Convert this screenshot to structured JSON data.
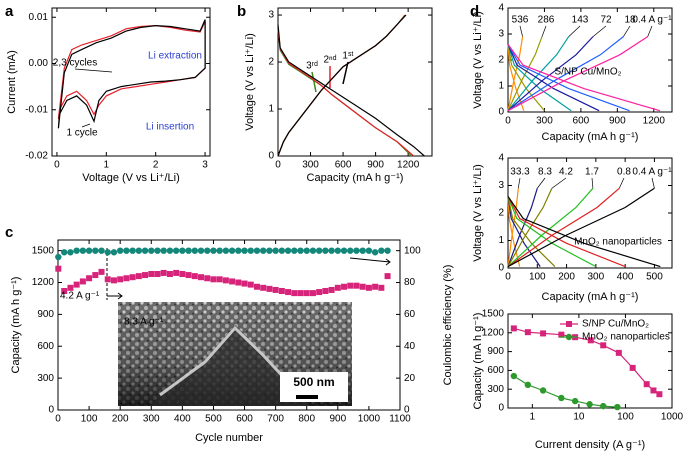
{
  "chart_data": [
    {
      "type": "line",
      "panel": "a",
      "xlabel": "Voltage (V vs Li⁺/Li)",
      "ylabel": "Current (mA)",
      "xlim": [
        -0.1,
        3.1
      ],
      "xticks": [
        0,
        1,
        2,
        3
      ],
      "ylim": [
        -0.02,
        0.012
      ],
      "yticks": [
        -0.02,
        -0.01,
        {
          "value": 0,
          "label": "0.00"
        },
        0.01
      ],
      "annotation_color": "#2a3fd1",
      "annotations": [
        "Li extraction",
        "Li insertion"
      ],
      "series": [
        {
          "name": "2,3 cycles",
          "color": "#e8202a",
          "x": [
            0.03,
            0.15,
            0.3,
            0.5,
            0.8,
            1.1,
            1.4,
            1.7,
            2.0,
            2.3,
            2.6,
            2.9,
            3.0,
            3.0,
            2.8,
            2.5,
            2.2,
            1.9,
            1.6,
            1.3,
            1.0,
            0.85,
            0.75,
            0.6,
            0.4,
            0.2,
            0.05,
            0.03
          ],
          "values": [
            -0.012,
            -0.001,
            0.003,
            0.004,
            0.005,
            0.006,
            0.0075,
            0.008,
            0.0082,
            0.0078,
            0.0072,
            0.0068,
            0.009,
            -0.001,
            -0.003,
            -0.0035,
            -0.004,
            -0.0045,
            -0.005,
            -0.0055,
            -0.007,
            -0.009,
            -0.011,
            -0.008,
            -0.006,
            -0.007,
            -0.01,
            -0.012
          ]
        },
        {
          "name": "1 cycle",
          "color": "#000000",
          "x": [
            0.03,
            0.15,
            0.3,
            0.5,
            0.8,
            1.1,
            1.4,
            1.7,
            2.0,
            2.3,
            2.6,
            2.9,
            3.0,
            3.0,
            2.8,
            2.5,
            2.2,
            1.9,
            1.6,
            1.3,
            1.0,
            0.85,
            0.75,
            0.6,
            0.4,
            0.2,
            0.05,
            0.03
          ],
          "values": [
            -0.014,
            -0.002,
            0.002,
            0.003,
            0.0045,
            0.0055,
            0.007,
            0.0078,
            0.0082,
            0.008,
            0.0075,
            0.007,
            0.0095,
            -0.001,
            -0.003,
            -0.0035,
            -0.0038,
            -0.004,
            -0.0045,
            -0.005,
            -0.006,
            -0.008,
            -0.0125,
            -0.009,
            -0.007,
            -0.008,
            -0.011,
            -0.014
          ]
        }
      ]
    },
    {
      "type": "line",
      "panel": "b",
      "xlabel": "Capacity (mA h g⁻¹)",
      "ylabel": "Voltage (V vs Li⁺/Li)",
      "xlim": [
        0,
        1420
      ],
      "xticks": [
        0,
        300,
        600,
        900,
        1200
      ],
      "ylim": [
        0,
        3.15
      ],
      "yticks": [
        0,
        1,
        2,
        3
      ],
      "series": [
        {
          "name": "3ʳᵈ",
          "color": "#3a8a1a",
          "x": [
            0,
            20,
            100,
            200,
            300,
            400,
            500,
            700,
            900,
            1100,
            1230,
            null,
            0,
            50,
            100,
            200,
            400,
            600,
            800,
            900,
            1000,
            1100,
            1170
          ],
          "values": [
            2.7,
            2.25,
            1.95,
            1.8,
            1.65,
            1.5,
            1.3,
            0.95,
            0.6,
            0.3,
            0.0,
            null,
            0,
            0.3,
            0.5,
            0.8,
            1.4,
            1.9,
            2.2,
            2.35,
            2.55,
            2.8,
            3.0
          ]
        },
        {
          "name": "2ⁿᵈ",
          "color": "#e8202a",
          "x": [
            0,
            20,
            100,
            200,
            300,
            400,
            500,
            700,
            900,
            1100,
            1250,
            null,
            0,
            50,
            100,
            200,
            400,
            600,
            800,
            900,
            1000,
            1100,
            1175
          ],
          "values": [
            2.7,
            2.28,
            1.97,
            1.82,
            1.67,
            1.5,
            1.3,
            0.95,
            0.6,
            0.3,
            0.0,
            null,
            0,
            0.3,
            0.5,
            0.8,
            1.4,
            1.9,
            2.2,
            2.35,
            2.55,
            2.8,
            3.0
          ]
        },
        {
          "name": "1ˢᵗ",
          "color": "#000000",
          "x": [
            0,
            20,
            100,
            200,
            300,
            400,
            500,
            700,
            900,
            1100,
            1250,
            1350,
            null,
            0,
            50,
            100,
            200,
            400,
            600,
            800,
            900,
            1000,
            1100,
            1180
          ],
          "values": [
            2.8,
            2.3,
            2.0,
            1.85,
            1.7,
            1.55,
            1.4,
            1.1,
            0.8,
            0.45,
            0.2,
            0.0,
            null,
            0,
            0.3,
            0.5,
            0.8,
            1.4,
            1.9,
            2.2,
            2.35,
            2.55,
            2.8,
            3.0
          ]
        }
      ]
    },
    {
      "type": "scatter",
      "panel": "c",
      "xlabel": "Cycle number",
      "ylabel": "Capacity (mA h g⁻¹)",
      "y2label": "Coulombic efficiency (%)",
      "xlim": [
        0,
        1100
      ],
      "xticks": [
        0,
        100,
        200,
        300,
        400,
        500,
        600,
        700,
        800,
        900,
        1000,
        1100
      ],
      "ylim": [
        0,
        1600
      ],
      "yticks": [
        0,
        300,
        600,
        900,
        1200,
        1500
      ],
      "y2lim": [
        0,
        106.7
      ],
      "y2ticks": [
        0,
        20,
        40,
        60,
        80,
        100
      ],
      "annotations": [
        "4.2 A g⁻¹",
        "8.3 A g⁻¹",
        "500 nm"
      ],
      "x": [
        1,
        20,
        40,
        60,
        80,
        100,
        120,
        140,
        160,
        180,
        200,
        220,
        240,
        260,
        280,
        300,
        320,
        340,
        360,
        380,
        400,
        420,
        440,
        460,
        480,
        500,
        520,
        540,
        560,
        580,
        600,
        620,
        640,
        660,
        680,
        700,
        720,
        740,
        760,
        780,
        800,
        820,
        840,
        860,
        880,
        900,
        920,
        940,
        960,
        980,
        1000,
        1020,
        1040,
        1060
      ],
      "series": [
        {
          "color": "#d6247a",
          "marker": "square",
          "values": [
            1330,
            1120,
            1150,
            1180,
            1210,
            1240,
            1270,
            1300,
            1230,
            1220,
            1230,
            1240,
            1250,
            1260,
            1270,
            1280,
            1280,
            1290,
            1280,
            1290,
            1280,
            1270,
            1260,
            1250,
            1240,
            1230,
            1230,
            1220,
            1210,
            1200,
            1190,
            1180,
            1160,
            1150,
            1140,
            1130,
            1120,
            1110,
            1100,
            1100,
            1100,
            1100,
            1110,
            1120,
            1130,
            1150,
            1160,
            1170,
            1170,
            1160,
            1150,
            1160,
            1150,
            1260
          ]
        },
        {
          "color": "#12877a",
          "marker": "circle",
          "axis": "y2",
          "values": [
            96,
            99,
            99,
            100,
            100,
            100,
            100,
            100,
            99,
            99,
            100,
            100,
            100,
            100,
            100,
            100,
            100,
            100,
            100,
            100,
            100,
            100,
            100,
            100,
            100,
            100,
            100,
            100,
            100,
            100,
            100,
            100,
            100,
            100,
            100,
            100,
            100,
            100,
            100,
            100,
            100,
            100,
            100,
            100,
            100,
            100,
            100,
            100,
            100,
            100,
            100,
            99,
            100,
            100
          ]
        }
      ]
    },
    {
      "type": "line",
      "panel": "d",
      "xlabel": "Capacity (mA h g⁻¹)",
      "ylabel": "Voltage (V vs Li⁺/Li)",
      "xlim": [
        0,
        1350
      ],
      "xticks": [
        0,
        300,
        600,
        900,
        1200
      ],
      "ylim": [
        0,
        4
      ],
      "yticks": [
        0,
        1,
        2,
        3,
        4
      ],
      "annotations": [
        "S/NP Cu/MnO₂"
      ],
      "series": [
        {
          "name": "536",
          "color": "#ff8c00",
          "x": [
            0,
            13,
            65,
            130,
            null,
            0,
            48,
            96,
            120
          ],
          "values": [
            2.6,
            1.8,
            0.9,
            0.05,
            null,
            0.05,
            1.2,
            2.2,
            2.9
          ]
        },
        {
          "name": "286",
          "color": "#9a9a00",
          "x": [
            0,
            30,
            150,
            300,
            null,
            0,
            112,
            224,
            280
          ],
          "values": [
            2.6,
            1.8,
            0.9,
            0.05,
            null,
            0.05,
            1.2,
            2.2,
            2.9
          ]
        },
        {
          "name": "143",
          "color": "#00a0a0",
          "x": [
            0,
            52,
            260,
            520,
            null,
            0,
            200,
            400,
            500
          ],
          "values": [
            2.6,
            1.8,
            0.9,
            0.05,
            null,
            0.05,
            1.2,
            2.2,
            2.9
          ]
        },
        {
          "name": "72",
          "color": "#1a1aa0",
          "x": [
            0,
            75,
            375,
            750,
            null,
            0,
            280,
            560,
            700
          ],
          "values": [
            2.6,
            1.8,
            0.9,
            0.05,
            null,
            0.05,
            1.2,
            2.2,
            2.9
          ]
        },
        {
          "name": "18",
          "color": "#2060ff",
          "x": [
            0,
            100,
            500,
            1000,
            null,
            0,
            380,
            760,
            950
          ],
          "values": [
            2.6,
            1.8,
            0.9,
            0.05,
            null,
            0.05,
            1.2,
            2.2,
            2.9
          ]
        },
        {
          "name": "0.4 A g⁻¹",
          "color": "#ff20a0",
          "x": [
            0,
            125,
            625,
            1250,
            null,
            0,
            460,
            920,
            1150
          ],
          "values": [
            2.6,
            1.8,
            0.9,
            0.05,
            null,
            0.05,
            1.2,
            2.2,
            2.9
          ]
        }
      ]
    },
    {
      "type": "line",
      "xlabel": "Capacity (mA h g⁻¹)",
      "ylabel": "Voltage (V vs Li⁺/Li)",
      "xlim": [
        0,
        560
      ],
      "xticks": [
        0,
        100,
        200,
        300,
        400,
        500
      ],
      "ylim": [
        0,
        4
      ],
      "yticks": [
        0,
        1,
        2,
        3,
        4
      ],
      "annotations": [
        "MnO₂ nanoparticles"
      ],
      "series": [
        {
          "name": "33.3",
          "color": "#ff8c00",
          "x": [
            0,
            4,
            20,
            40,
            null,
            0,
            14,
            28,
            35
          ],
          "values": [
            2.6,
            1.8,
            0.9,
            0.05,
            null,
            0.05,
            1.2,
            2.2,
            2.9
          ]
        },
        {
          "name": "8.3",
          "color": "#1a1a80",
          "x": [
            0,
            11,
            55,
            110,
            null,
            0,
            40,
            80,
            100
          ],
          "values": [
            2.6,
            1.8,
            0.9,
            0.05,
            null,
            0.05,
            1.2,
            2.2,
            2.9
          ]
        },
        {
          "name": "4.2",
          "color": "#808000",
          "x": [
            0,
            16,
            80,
            160,
            null,
            0,
            60,
            120,
            150
          ],
          "values": [
            2.6,
            1.8,
            0.9,
            0.05,
            null,
            0.05,
            1.2,
            2.2,
            2.9
          ]
        },
        {
          "name": "1.7",
          "color": "#20c020",
          "x": [
            0,
            30,
            150,
            300,
            null,
            0,
            116,
            232,
            290
          ],
          "values": [
            2.6,
            1.8,
            0.9,
            0.05,
            null,
            0.05,
            1.2,
            2.2,
            2.9
          ]
        },
        {
          "name": "0.8",
          "color": "#e02020",
          "x": [
            0,
            40,
            200,
            400,
            null,
            0,
            152,
            304,
            380
          ],
          "values": [
            2.6,
            1.8,
            0.9,
            0.05,
            null,
            0.05,
            1.2,
            2.2,
            2.9
          ]
        },
        {
          "name": "0.4 A g⁻¹",
          "color": "#000000",
          "x": [
            0,
            52,
            260,
            520,
            null,
            0,
            200,
            400,
            500
          ],
          "values": [
            2.6,
            1.8,
            0.9,
            0.05,
            null,
            0.05,
            1.2,
            2.2,
            2.9
          ]
        }
      ]
    },
    {
      "type": "line",
      "xlabel": "Current density (A g⁻¹)",
      "ylabel": "Capacity (mA h g⁻¹)",
      "xscale": "log",
      "xlim": [
        0.3,
        1000
      ],
      "xticks": [
        1,
        10,
        100,
        1000
      ],
      "ylim": [
        0,
        1500
      ],
      "yticks": [
        0,
        300,
        600,
        900,
        1200,
        1500
      ],
      "legend": "upper right",
      "series": [
        {
          "name": "S/NP Cu/MnO₂",
          "color": "#d6247a",
          "marker": "square",
          "x": [
            0.4,
            0.8,
            1.7,
            4.2,
            8.3,
            18,
            33.3,
            72,
            143,
            286,
            400,
            536
          ],
          "values": [
            1270,
            1210,
            1190,
            1170,
            1130,
            1080,
            1000,
            880,
            640,
            380,
            280,
            220
          ]
        },
        {
          "name": "MnO₂ nanoparticles",
          "color": "#2e9a2e",
          "marker": "circle",
          "x": [
            0.4,
            0.8,
            1.7,
            4.2,
            8.3,
            17,
            33.3,
            67
          ],
          "values": [
            510,
            370,
            280,
            160,
            110,
            60,
            30,
            15
          ]
        }
      ]
    }
  ]
}
